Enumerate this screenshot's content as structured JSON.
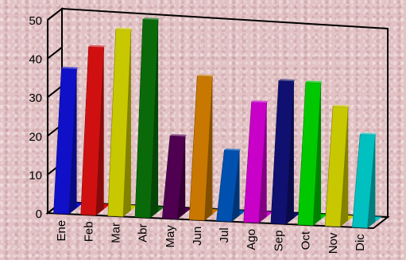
{
  "chart_data": {
    "type": "bar",
    "style": "3d",
    "categories": [
      "Ene",
      "Feb",
      "Mar",
      "Abr",
      "May",
      "Jun",
      "Jul",
      "Ago",
      "Sep",
      "Oct",
      "Nov",
      "Dic"
    ],
    "values": [
      36,
      42,
      47,
      50,
      20,
      36,
      17,
      30,
      36,
      36,
      30,
      23
    ],
    "colors": [
      "#1010c8",
      "#d01010",
      "#c8c800",
      "#0a6a0a",
      "#500050",
      "#c87800",
      "#0050b0",
      "#c800c8",
      "#101070",
      "#00c800",
      "#c8c800",
      "#00c0c0"
    ],
    "yticks": [
      0,
      10,
      20,
      30,
      40,
      50
    ],
    "ylim": [
      0,
      50
    ],
    "title": "",
    "xlabel": "",
    "ylabel": "",
    "grid": false,
    "legend": "none"
  }
}
